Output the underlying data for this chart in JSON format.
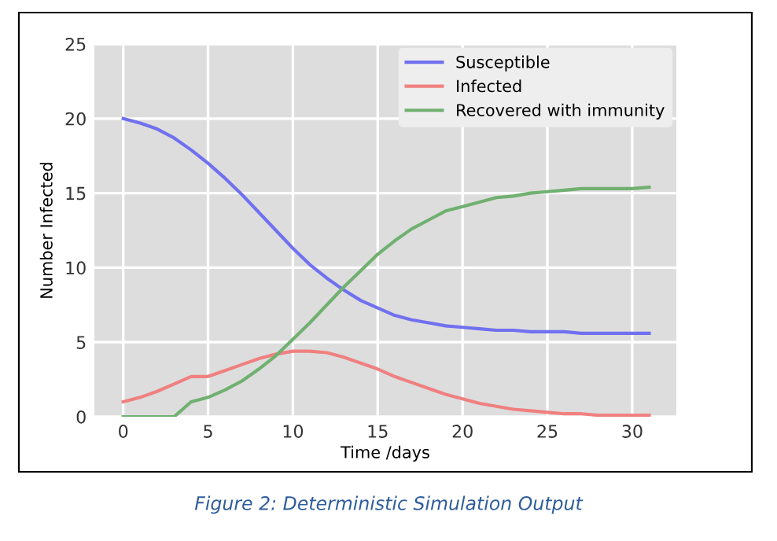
{
  "chart_data": {
    "type": "line",
    "xlabel": "Time /days",
    "ylabel": "Number Infected",
    "x": [
      0,
      1,
      2,
      3,
      4,
      5,
      6,
      7,
      8,
      9,
      10,
      11,
      12,
      13,
      14,
      15,
      16,
      17,
      18,
      19,
      20,
      21,
      22,
      23,
      24,
      25,
      26,
      27,
      28,
      29,
      30,
      31
    ],
    "series": [
      {
        "name": "Susceptible",
        "color": "#7070f0",
        "values": [
          20,
          19.7,
          19.3,
          18.7,
          17.9,
          17.0,
          16.0,
          14.9,
          13.7,
          12.5,
          11.3,
          10.2,
          9.3,
          8.5,
          7.8,
          7.3,
          6.8,
          6.5,
          6.3,
          6.1,
          6.0,
          5.9,
          5.8,
          5.8,
          5.7,
          5.7,
          5.7,
          5.6,
          5.6,
          5.6,
          5.6,
          5.6
        ]
      },
      {
        "name": "Infected",
        "color": "#f08080",
        "values": [
          1,
          1.3,
          1.7,
          2.2,
          2.7,
          2.7,
          3.1,
          3.5,
          3.9,
          4.2,
          4.4,
          4.4,
          4.3,
          4.0,
          3.6,
          3.2,
          2.7,
          2.3,
          1.9,
          1.5,
          1.2,
          0.9,
          0.7,
          0.5,
          0.4,
          0.3,
          0.2,
          0.2,
          0.1,
          0.1,
          0.1,
          0.1
        ]
      },
      {
        "name": "Recovered with immunity",
        "color": "#70b070",
        "values": [
          0,
          0,
          0,
          0,
          1.0,
          1.3,
          1.8,
          2.4,
          3.2,
          4.1,
          5.2,
          6.3,
          7.5,
          8.7,
          9.8,
          10.9,
          11.8,
          12.6,
          13.2,
          13.8,
          14.1,
          14.4,
          14.7,
          14.8,
          15.0,
          15.1,
          15.2,
          15.3,
          15.3,
          15.3,
          15.3,
          15.4
        ]
      }
    ],
    "xlim": [
      -1.7,
      32.6
    ],
    "ylim": [
      0,
      25
    ],
    "xticks": [
      0,
      5,
      10,
      15,
      20,
      25,
      30
    ],
    "yticks": [
      0,
      5,
      10,
      15,
      20,
      25
    ],
    "grid": true,
    "legend": "top right",
    "marker": "none",
    "line_style": "solid",
    "annotations": [
      "Figure 2: Deterministic Simulation Output"
    ]
  }
}
